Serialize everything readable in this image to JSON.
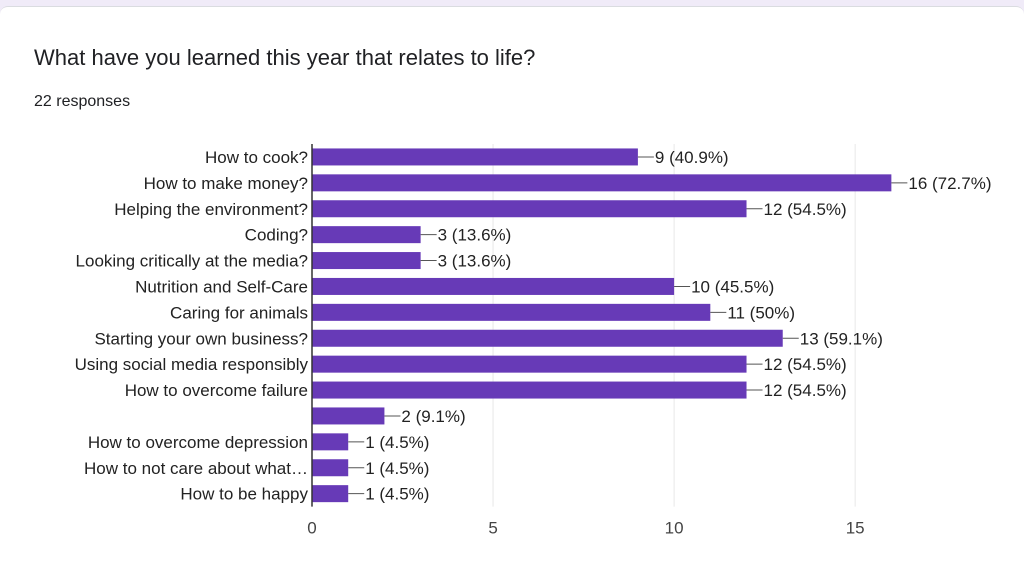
{
  "form": {
    "question": "What have you learned this year that relates to life?",
    "responses": "22 responses"
  },
  "chart_data": {
    "type": "bar",
    "orientation": "horizontal",
    "title": "What have you learned this year that relates to life?",
    "total_responses": 22,
    "categories": [
      "How to cook?",
      "How to make money?",
      "Helping the environment?",
      "Coding?",
      "Looking critically at the media?",
      "Nutrition and Self-Care",
      "Caring for animals",
      "Starting your own business?",
      "Using social media responsibly",
      "How to overcome failure",
      "",
      "How to overcome depression",
      "How to not care about what…",
      "How to be happy"
    ],
    "values": [
      9,
      16,
      12,
      3,
      3,
      10,
      11,
      13,
      12,
      12,
      2,
      1,
      1,
      1
    ],
    "data_labels": [
      "9 (40.9%)",
      "16 (72.7%)",
      "12 (54.5%)",
      "3 (13.6%)",
      "3 (13.6%)",
      "10 (45.5%)",
      "11 (50%)",
      "13 (59.1%)",
      "12 (54.5%)",
      "12 (54.5%)",
      "2 (9.1%)",
      "1 (4.5%)",
      "1 (4.5%)",
      "1 (4.5%)"
    ],
    "xticks": [
      0,
      5,
      10,
      15
    ],
    "xlim": [
      0,
      19
    ],
    "grid": true,
    "colors": {
      "bar": "#673ab7",
      "grid": "#e8e8e8",
      "axis": "#333333",
      "leader": "#555555"
    }
  }
}
